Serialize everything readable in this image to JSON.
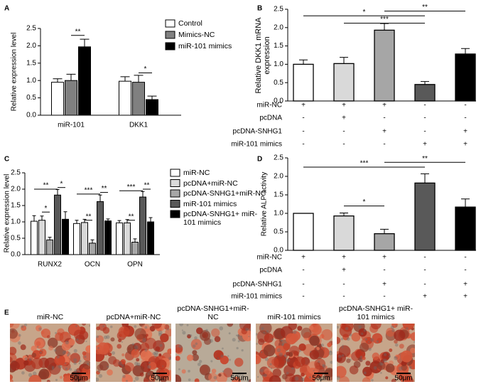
{
  "chart_data": [
    {
      "label": "A",
      "type": "grouped-bar",
      "ylabel": "Relative expression level",
      "categories": [
        "miR-101",
        "DKK1"
      ],
      "series": [
        {
          "name": "Control",
          "color": "#ffffff",
          "values": [
            0.95,
            0.98
          ],
          "errors": [
            0.1,
            0.13
          ]
        },
        {
          "name": "Mimics-NC",
          "color": "#808080",
          "values": [
            1.0,
            0.95
          ],
          "errors": [
            0.18,
            0.2
          ]
        },
        {
          "name": "miR-101 mimics",
          "color": "#000000",
          "values": [
            1.97,
            0.45
          ],
          "errors": [
            0.22,
            0.1
          ]
        }
      ],
      "ylim": [
        0,
        2.5
      ],
      "yticks": [
        {
          "value": 0,
          "label": "0.0"
        },
        0.5,
        {
          "value": 1,
          "label": "1.0"
        },
        1.5,
        {
          "value": 2,
          "label": "2.0"
        },
        2.5
      ],
      "annotations": [
        "**",
        "*"
      ]
    },
    {
      "label": "B",
      "type": "bar",
      "ylabel": "Relative DKK1 mRNA expression",
      "values": [
        1.0,
        1.02,
        1.93,
        0.45,
        1.28
      ],
      "errors": [
        0.12,
        0.17,
        0.18,
        0.08,
        0.15
      ],
      "colors": [
        "#ffffff",
        "#d9d9d9",
        "#a6a6a6",
        "#595959",
        "#000000"
      ],
      "ylim": [
        0,
        2.5
      ],
      "yticks": [
        {
          "value": 0,
          "label": "0.0"
        },
        0.5,
        {
          "value": 1,
          "label": "1.0"
        },
        1.5,
        {
          "value": 2,
          "label": "2.0"
        },
        2.5
      ],
      "annotations": [
        "*",
        "***",
        "**"
      ],
      "conditions": [
        {
          "name": "miR-NC",
          "marks": [
            "+",
            "+",
            "+",
            "-",
            "-"
          ]
        },
        {
          "name": "pcDNA",
          "marks": [
            "-",
            "+",
            "-",
            "-",
            "-"
          ]
        },
        {
          "name": "pcDNA-SNHG1",
          "marks": [
            "-",
            "-",
            "+",
            "-",
            "+"
          ]
        },
        {
          "name": "miR-101 mimics",
          "marks": [
            "-",
            "-",
            "-",
            "+",
            "+"
          ]
        }
      ]
    },
    {
      "label": "C",
      "type": "grouped-bar",
      "ylabel": "Relative expression level",
      "categories": [
        "RUNX2",
        "OCN",
        "OPN"
      ],
      "series": [
        {
          "name": "miR-NC",
          "color": "#ffffff",
          "values": [
            1.02,
            0.95,
            0.97
          ],
          "errors": [
            0.17,
            0.1,
            0.07
          ]
        },
        {
          "name": "pcDNA+miR-NC",
          "color": "#d9d9d9",
          "values": [
            1.05,
            0.98,
            0.97
          ],
          "errors": [
            0.13,
            0.1,
            0.1
          ]
        },
        {
          "name": "pcDNA-SNHG1+miR-NC",
          "color": "#a6a6a6",
          "values": [
            0.45,
            0.35,
            0.38
          ],
          "errors": [
            0.08,
            0.1,
            0.1
          ]
        },
        {
          "name": "miR-101 mimics",
          "color": "#595959",
          "values": [
            1.82,
            1.62,
            1.76
          ],
          "errors": [
            0.17,
            0.2,
            0.17
          ]
        },
        {
          "name": "pcDNA-SNHG1+ miR-101 mimics",
          "color": "#000000",
          "values": [
            1.08,
            1.03,
            1.0
          ],
          "errors": [
            0.23,
            0.06,
            0.13
          ]
        }
      ],
      "ylim": [
        0,
        2.5
      ],
      "yticks": [
        {
          "value": 0,
          "label": "0.0"
        },
        0.5,
        {
          "value": 1,
          "label": "1.0"
        },
        1.5,
        {
          "value": 2,
          "label": "2.0"
        },
        2.5
      ],
      "annotations": [
        "**",
        "*",
        "*",
        "***",
        "**",
        "**",
        "***",
        "**",
        "**"
      ]
    },
    {
      "label": "D",
      "type": "bar",
      "ylabel": "Relative ALP activity",
      "values": [
        1.0,
        0.93,
        0.45,
        1.82,
        1.17
      ],
      "errors": [
        0,
        0.08,
        0.12,
        0.25,
        0.22
      ],
      "colors": [
        "#ffffff",
        "#d9d9d9",
        "#a6a6a6",
        "#595959",
        "#000000"
      ],
      "ylim": [
        0,
        2.5
      ],
      "yticks": [
        {
          "value": 0,
          "label": "0.0"
        },
        0.5,
        {
          "value": 1,
          "label": "1.0"
        },
        1.5,
        {
          "value": 2,
          "label": "2.0"
        },
        2.5
      ],
      "annotations": [
        "***",
        "**",
        "*"
      ],
      "conditions": [
        {
          "name": "miR-NC",
          "marks": [
            "+",
            "+",
            "+",
            "-",
            "-"
          ]
        },
        {
          "name": "pcDNA",
          "marks": [
            "-",
            "+",
            "-",
            "-",
            "-"
          ]
        },
        {
          "name": "pcDNA-SNHG1",
          "marks": [
            "-",
            "-",
            "+",
            "-",
            "+"
          ]
        },
        {
          "name": "miR-101 mimics",
          "marks": [
            "-",
            "-",
            "-",
            "+",
            "+"
          ]
        }
      ]
    }
  ],
  "images": {
    "label": "E",
    "captions": [
      "miR-NC",
      "pcDNA+miR-NC",
      "pcDNA-SNHG1+miR-NC",
      "miR-101 mimics",
      "pcDNA-SNHG1+ miR-101 mimics"
    ],
    "scale_bar": "50μm"
  }
}
